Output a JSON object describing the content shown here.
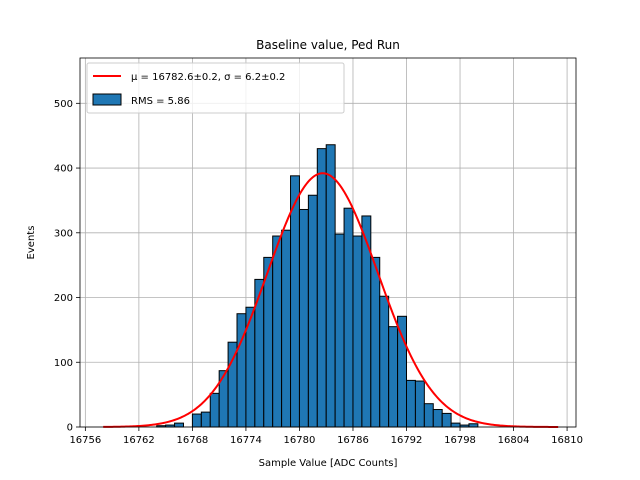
{
  "chart_data": {
    "type": "bar",
    "title": "Baseline value, Ped Run",
    "xlabel": "Sample Value [ADC Counts]",
    "ylabel": "Events",
    "xlim": [
      16755.4,
      16811.0
    ],
    "ylim": [
      0,
      570
    ],
    "xticks": [
      16756,
      16762,
      16768,
      16774,
      16780,
      16786,
      16792,
      16798,
      16804,
      16810
    ],
    "yticks": [
      0,
      100,
      200,
      300,
      400,
      500
    ],
    "grid": true,
    "legend_position": "top-left",
    "bin_width": 1,
    "histogram": {
      "name": "RMS = 5.86",
      "color": "#1f77b4",
      "edge_color": "#000000",
      "bin_starts": [
        16764,
        16765,
        16766,
        16767,
        16768,
        16769,
        16770,
        16771,
        16772,
        16773,
        16774,
        16775,
        16776,
        16777,
        16778,
        16779,
        16780,
        16781,
        16782,
        16783,
        16784,
        16785,
        16786,
        16787,
        16788,
        16789,
        16790,
        16791,
        16792,
        16793,
        16794,
        16795,
        16796,
        16797,
        16798,
        16799
      ],
      "values": [
        2,
        3,
        6,
        0,
        20,
        23,
        52,
        87,
        131,
        175,
        185,
        228,
        262,
        295,
        304,
        388,
        336,
        358,
        430,
        436,
        298,
        338,
        295,
        326,
        262,
        202,
        155,
        171,
        72,
        71,
        36,
        27,
        21,
        6,
        3,
        5
      ]
    },
    "fit": {
      "name": "μ = 16782.6±0.2, σ = 6.2±0.2",
      "type": "gaussian",
      "mu": 16782.6,
      "sigma": 6.2,
      "amplitude": 392,
      "x_range": [
        16758,
        16809
      ],
      "color": "#ff0000"
    }
  }
}
